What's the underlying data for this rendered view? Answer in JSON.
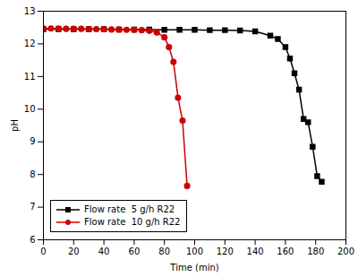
{
  "chart_data": {
    "type": "line",
    "xlabel": "Time (min)",
    "ylabel": "pH",
    "xlim": [
      0,
      200
    ],
    "ylim": [
      6,
      13
    ],
    "xticks": [
      0,
      20,
      40,
      60,
      80,
      100,
      120,
      140,
      160,
      180,
      200
    ],
    "yticks": [
      6,
      7,
      8,
      9,
      10,
      11,
      12,
      13
    ],
    "legend": "lower left",
    "series": [
      {
        "name": "Flow rate  5 g/h R22",
        "color": "#000000",
        "marker": "square",
        "x": [
          0,
          10,
          20,
          30,
          40,
          50,
          60,
          70,
          80,
          90,
          100,
          110,
          120,
          130,
          140,
          150,
          155,
          160,
          163,
          166,
          169,
          172,
          175,
          178,
          181,
          184
        ],
        "values": [
          12.45,
          12.45,
          12.45,
          12.45,
          12.45,
          12.44,
          12.44,
          12.44,
          12.43,
          12.43,
          12.43,
          12.42,
          12.42,
          12.41,
          12.38,
          12.25,
          12.15,
          11.9,
          11.55,
          11.1,
          10.6,
          9.7,
          9.6,
          8.85,
          7.95,
          7.78
        ]
      },
      {
        "name": "Flow rate  10 g/h R22",
        "color": "#cc0000",
        "marker": "circle",
        "x": [
          0,
          5,
          10,
          15,
          20,
          25,
          30,
          35,
          40,
          45,
          50,
          55,
          60,
          65,
          70,
          75,
          80,
          83,
          86,
          89,
          92,
          95
        ],
        "values": [
          12.47,
          12.47,
          12.47,
          12.46,
          12.46,
          12.46,
          12.45,
          12.45,
          12.45,
          12.44,
          12.44,
          12.43,
          12.43,
          12.42,
          12.4,
          12.35,
          12.2,
          11.9,
          11.45,
          10.35,
          9.65,
          7.65
        ]
      }
    ]
  }
}
